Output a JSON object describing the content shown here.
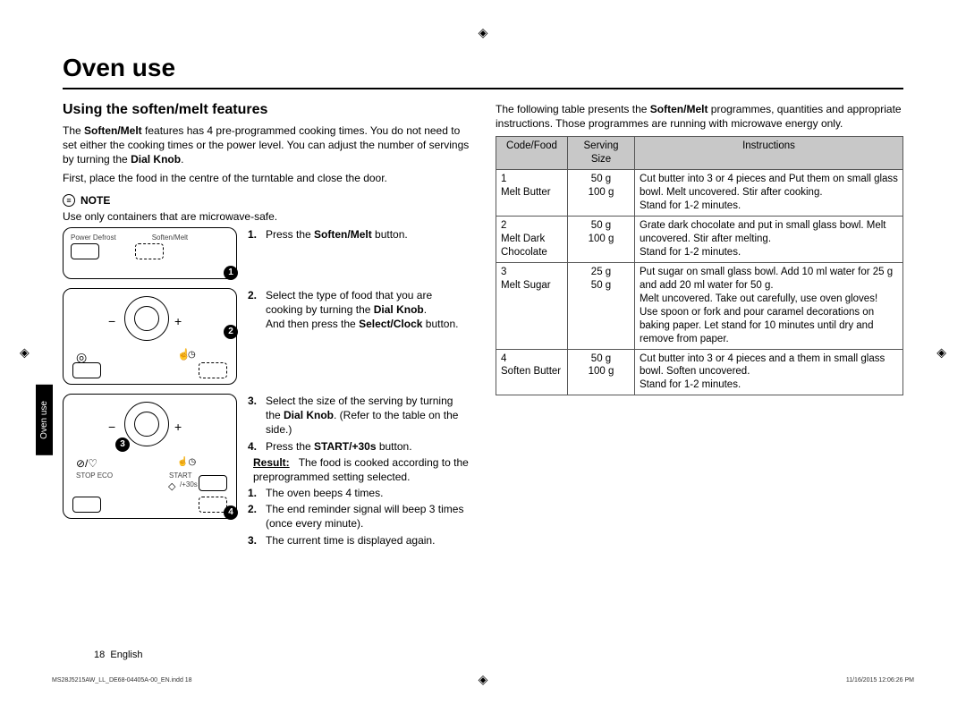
{
  "page_title": "Oven use",
  "section_title": "Using the soften/melt features",
  "intro_para_1_pre": "The ",
  "intro_bold_1": "Soften/Melt",
  "intro_para_1_post": " features has 4 pre-programmed cooking times. You do not need to set either the cooking times or the power level. You can adjust the number of servings by turning the ",
  "intro_bold_2": "Dial Knob",
  "intro_para_2": "First, place the food in the centre of the turntable and close the door.",
  "note_label": "NOTE",
  "note_text": "Use only containers that are microwave-safe.",
  "panel1_label_left": "Power Defrost",
  "panel1_label_right": "Soften/Melt",
  "panel3_stop": "STOP  ECO",
  "panel3_start": "START",
  "panel3_30s": "/+30s",
  "steps": {
    "s1_pre": "Press the ",
    "s1_bold": "Soften/Melt",
    "s1_post": " button.",
    "s2_pre": "Select the type of food that you are cooking by turning the ",
    "s2_bold": "Dial Knob",
    "s2_post": ".",
    "s2b_pre": "And then press the ",
    "s2b_bold": "Select/Clock",
    "s2b_post": " button.",
    "s3_pre": "Select the size of the serving by turning the ",
    "s3_bold": "Dial Knob",
    "s3_post": ". (Refer to the table on the side.)",
    "s4_pre": "Press the ",
    "s4_bold": "START/+30s",
    "s4_post": " button.",
    "result_label": "Result:",
    "result_text": "The food is cooked according to the preprogrammed setting selected.",
    "r1": "The oven beeps 4 times.",
    "r2": "The end reminder signal will beep 3 times (once every minute).",
    "r3": "The current time is displayed again."
  },
  "side_tab": "Oven use",
  "col2_intro_pre": "The following table presents the ",
  "col2_intro_bold": "Soften/Melt",
  "col2_intro_post": " programmes, quantities and appropriate instructions. Those programmes are running with microwave energy only.",
  "table": {
    "headers": [
      "Code/Food",
      "Serving Size",
      "Instructions"
    ],
    "rows": [
      {
        "code": "1\nMelt Butter",
        "size": "50 g\n100 g",
        "instr": "Cut butter into 3 or 4 pieces and Put them on small glass bowl. Melt uncovered. Stir after cooking.\nStand for 1-2 minutes."
      },
      {
        "code": "2\nMelt Dark Chocolate",
        "size": "50 g\n100 g",
        "instr": "Grate dark chocolate and put in small glass bowl. Melt uncovered. Stir after melting.\nStand for 1-2 minutes."
      },
      {
        "code": "3\nMelt Sugar",
        "size": "25 g\n50 g",
        "instr": "Put sugar on small glass bowl. Add 10 ml water for 25 g and add 20 ml water for 50 g.\nMelt uncovered. Take out carefully, use oven gloves! Use spoon or fork and pour caramel decorations on baking paper. Let stand for 10 minutes until dry and remove from paper."
      },
      {
        "code": "4\nSoften Butter",
        "size": "50 g\n100 g",
        "instr": "Cut butter into 3 or 4 pieces and a them in small glass bowl. Soften uncovered.\nStand for 1-2 minutes."
      }
    ]
  },
  "page_num": "18",
  "page_lang": "English",
  "footer_file": "MS28J5215AW_LL_DE68-04405A-00_EN.indd   18",
  "footer_date": "11/16/2015   12:06:26 PM"
}
